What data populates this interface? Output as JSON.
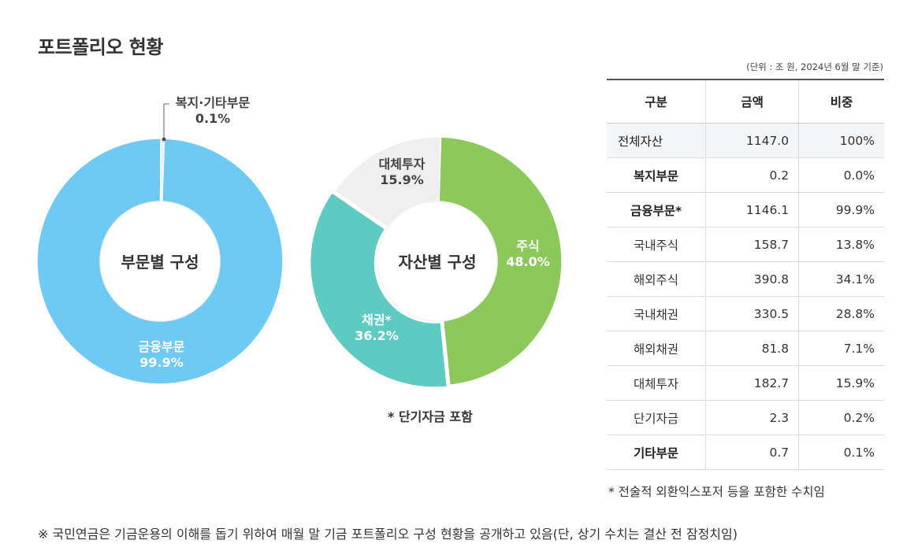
{
  "page": {
    "title": "포트폴리오 현황",
    "unit_note": "(단위 : 조 원, 2024년 6월 말 기준)",
    "short_note": "* 단기자금 포함",
    "table_footnote": "* 전술적 외환익스포저 등을 포함한 수치임",
    "bottom_note": "※  국민연금은 기금운용의 이해를 돕기 위하여 매월 말 기금 포트폴리오 구성 현황을 공개하고 있음(단, 상기 수치는 결산 전 잠정치임)"
  },
  "chart_data": [
    {
      "type": "pie",
      "center_label": "부문별 구성",
      "slices": [
        {
          "label": "금융부문",
          "value": 99.9,
          "value_text": "99.9%",
          "color": "#6ecaf2"
        },
        {
          "label": "복지·기타부문",
          "value": 0.1,
          "value_text": "0.1%",
          "color": "#e8eaec"
        }
      ]
    },
    {
      "type": "pie",
      "center_label": "자산별 구성",
      "slices": [
        {
          "label": "주식",
          "value": 48.0,
          "value_text": "48.0%",
          "color": "#8cc95a"
        },
        {
          "label": "채권*",
          "value": 36.2,
          "value_text": "36.2%",
          "color": "#5ecac2"
        },
        {
          "label": "대체투자",
          "value": 15.9,
          "value_text": "15.9%",
          "color": "#efefef"
        }
      ]
    }
  ],
  "table": {
    "headers": [
      "구분",
      "금액",
      "비중"
    ],
    "rows": [
      {
        "name": "전체자산",
        "amount": "1147.0",
        "share": "100%",
        "style": "total"
      },
      {
        "name": "복지부문",
        "amount": "0.2",
        "share": "0.0%",
        "style": "bold"
      },
      {
        "name": "금융부문*",
        "amount": "1146.1",
        "share": "99.9%",
        "style": "bold"
      },
      {
        "name": "국내주식",
        "amount": "158.7",
        "share": "13.8%",
        "style": "sub"
      },
      {
        "name": "해외주식",
        "amount": "390.8",
        "share": "34.1%",
        "style": "sub"
      },
      {
        "name": "국내채권",
        "amount": "330.5",
        "share": "28.8%",
        "style": "sub"
      },
      {
        "name": "해외채권",
        "amount": "81.8",
        "share": "7.1%",
        "style": "sub"
      },
      {
        "name": "대체투자",
        "amount": "182.7",
        "share": "15.9%",
        "style": "sub"
      },
      {
        "name": "단기자금",
        "amount": "2.3",
        "share": "0.2%",
        "style": "sub"
      },
      {
        "name": "기타부문",
        "amount": "0.7",
        "share": "0.1%",
        "style": "bold"
      }
    ]
  }
}
